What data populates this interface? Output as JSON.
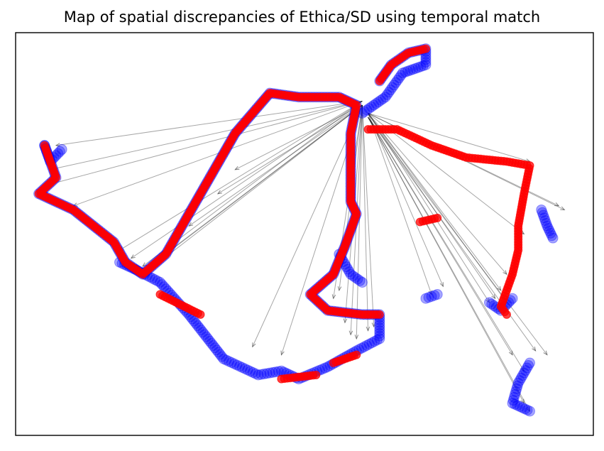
{
  "chart_data": {
    "type": "scatter",
    "title": "Map of spatial discrepancies of Ethica/SD using temporal match",
    "xlabel": "",
    "ylabel": "",
    "xlim": [
      0,
      100
    ],
    "ylim": [
      0,
      100
    ],
    "axis_ticks": "none",
    "grid": false,
    "legend": "none",
    "colors": {
      "series_a": "#0000ff",
      "series_b": "#ff0000",
      "arrows": "#000000"
    },
    "series": [
      {
        "color": "#0000ff",
        "marker": "circle",
        "segments": [
          [
            [
              5,
              72
            ],
            [
              7,
              64
            ],
            [
              4,
              60
            ],
            [
              10,
              56
            ],
            [
              17,
              48
            ],
            [
              19,
              43
            ],
            [
              22,
              40
            ],
            [
              26,
              45
            ],
            [
              32,
              60
            ],
            [
              38,
              75
            ],
            [
              44,
              85
            ],
            [
              49,
              84
            ],
            [
              56,
              84
            ],
            [
              59,
              82
            ],
            [
              58,
              75
            ],
            [
              58,
              65
            ],
            [
              58,
              58
            ],
            [
              59,
              55
            ],
            [
              57,
              47
            ],
            [
              55,
              40
            ],
            [
              51,
              35
            ],
            [
              54,
              31
            ],
            [
              60,
              30
            ],
            [
              63,
              30
            ],
            [
              63,
              24
            ],
            [
              59,
              21
            ],
            [
              54,
              17
            ],
            [
              49,
              14
            ],
            [
              46,
              16
            ],
            [
              42,
              15
            ],
            [
              36,
              19
            ],
            [
              30,
              30
            ],
            [
              25,
              38
            ],
            [
              21,
              41
            ],
            [
              18,
              43
            ]
          ],
          [
            [
              63,
              88
            ],
            [
              65,
              92
            ],
            [
              68,
              95
            ],
            [
              71,
              96
            ],
            [
              71,
              92
            ],
            [
              67,
              90
            ],
            [
              64,
              84
            ],
            [
              60,
              80
            ]
          ],
          [
            [
              5,
              72
            ],
            [
              6,
              68
            ],
            [
              8,
              71
            ]
          ],
          [
            [
              56,
              45
            ],
            [
              58,
              40
            ],
            [
              60,
              38
            ]
          ],
          [
            [
              91,
              56
            ],
            [
              92,
              52
            ],
            [
              93,
              49
            ]
          ],
          [
            [
              71,
              34
            ],
            [
              73,
              35
            ]
          ],
          [
            [
              82,
              33
            ],
            [
              84,
              31
            ],
            [
              86,
              34
            ]
          ],
          [
            [
              89,
              18
            ],
            [
              87,
              13
            ],
            [
              86,
              8
            ],
            [
              89,
              6
            ]
          ]
        ]
      },
      {
        "color": "#ff0000",
        "marker": "circle",
        "segments": [
          [
            [
              5,
              72
            ],
            [
              7,
              64
            ],
            [
              4,
              60
            ],
            [
              10,
              56
            ],
            [
              17,
              48
            ],
            [
              19,
              43
            ],
            [
              22,
              40
            ],
            [
              26,
              45
            ],
            [
              32,
              60
            ],
            [
              38,
              75
            ],
            [
              44,
              85
            ],
            [
              49,
              84
            ],
            [
              56,
              84
            ],
            [
              59,
              82
            ],
            [
              58,
              75
            ],
            [
              58,
              65
            ],
            [
              58,
              58
            ],
            [
              59,
              55
            ],
            [
              57,
              47
            ],
            [
              55,
              40
            ],
            [
              51,
              35
            ],
            [
              54,
              31
            ],
            [
              60,
              30
            ],
            [
              63,
              30
            ]
          ],
          [
            [
              63,
              88
            ],
            [
              65,
              92
            ],
            [
              68,
              95
            ],
            [
              71,
              96
            ]
          ],
          [
            [
              61,
              76
            ],
            [
              66,
              76
            ],
            [
              72,
              72
            ],
            [
              78,
              69
            ],
            [
              85,
              68
            ],
            [
              89,
              67
            ],
            [
              88,
              60
            ],
            [
              87,
              52
            ],
            [
              87,
              46
            ],
            [
              86,
              40
            ],
            [
              85,
              36
            ],
            [
              84,
              32
            ],
            [
              85,
              30
            ]
          ],
          [
            [
              25,
              35
            ],
            [
              32,
              30
            ]
          ],
          [
            [
              55,
              18
            ],
            [
              59,
              20
            ]
          ],
          [
            [
              46,
              14
            ],
            [
              52,
              15
            ]
          ],
          [
            [
              70,
              53
            ],
            [
              73,
              54
            ]
          ]
        ]
      }
    ],
    "arrows": [
      [
        [
          60,
          83
        ],
        [
          7,
          72
        ]
      ],
      [
        [
          60,
          83
        ],
        [
          6,
          66
        ]
      ],
      [
        [
          60,
          83
        ],
        [
          5,
          62
        ]
      ],
      [
        [
          60,
          83
        ],
        [
          10,
          57
        ]
      ],
      [
        [
          60,
          83
        ],
        [
          18,
          46
        ]
      ],
      [
        [
          60,
          83
        ],
        [
          22,
          42
        ]
      ],
      [
        [
          60,
          83
        ],
        [
          20,
          44
        ]
      ],
      [
        [
          60,
          82
        ],
        [
          23,
          41
        ]
      ],
      [
        [
          60,
          82
        ],
        [
          24,
          43
        ]
      ],
      [
        [
          60,
          82
        ],
        [
          26,
          45
        ]
      ],
      [
        [
          60,
          82
        ],
        [
          30,
          52
        ]
      ],
      [
        [
          60,
          82
        ],
        [
          35,
          60
        ]
      ],
      [
        [
          60,
          82
        ],
        [
          38,
          66
        ]
      ],
      [
        [
          60,
          82
        ],
        [
          41,
          22
        ]
      ],
      [
        [
          60,
          82
        ],
        [
          46,
          20
        ]
      ],
      [
        [
          60,
          82
        ],
        [
          55,
          34
        ]
      ],
      [
        [
          60,
          82
        ],
        [
          56,
          36
        ]
      ],
      [
        [
          60,
          82
        ],
        [
          57,
          28
        ]
      ],
      [
        [
          60,
          82
        ],
        [
          58,
          25
        ]
      ],
      [
        [
          60,
          82
        ],
        [
          59,
          24
        ]
      ],
      [
        [
          60,
          82
        ],
        [
          61,
          26
        ]
      ],
      [
        [
          60,
          82
        ],
        [
          62,
          27
        ]
      ],
      [
        [
          61,
          80
        ],
        [
          72,
          35
        ]
      ],
      [
        [
          61,
          80
        ],
        [
          74,
          37
        ]
      ],
      [
        [
          61,
          80
        ],
        [
          82,
          33
        ]
      ],
      [
        [
          61,
          80
        ],
        [
          83,
          34
        ]
      ],
      [
        [
          61,
          80
        ],
        [
          84,
          36
        ]
      ],
      [
        [
          61,
          80
        ],
        [
          85,
          40
        ]
      ],
      [
        [
          61,
          80
        ],
        [
          85,
          33
        ]
      ],
      [
        [
          61,
          79
        ],
        [
          86,
          20
        ]
      ],
      [
        [
          61,
          79
        ],
        [
          88,
          16
        ]
      ],
      [
        [
          61,
          79
        ],
        [
          88,
          8
        ]
      ],
      [
        [
          61,
          79
        ],
        [
          89,
          6
        ]
      ],
      [
        [
          61,
          79
        ],
        [
          90,
          21
        ]
      ],
      [
        [
          61,
          79
        ],
        [
          92,
          20
        ]
      ],
      [
        [
          61,
          80
        ],
        [
          88,
          50
        ]
      ],
      [
        [
          61,
          80
        ],
        [
          94,
          57
        ]
      ],
      [
        [
          61,
          80
        ],
        [
          95,
          56
        ]
      ],
      [
        [
          61,
          80
        ],
        [
          89,
          68
        ]
      ]
    ]
  }
}
